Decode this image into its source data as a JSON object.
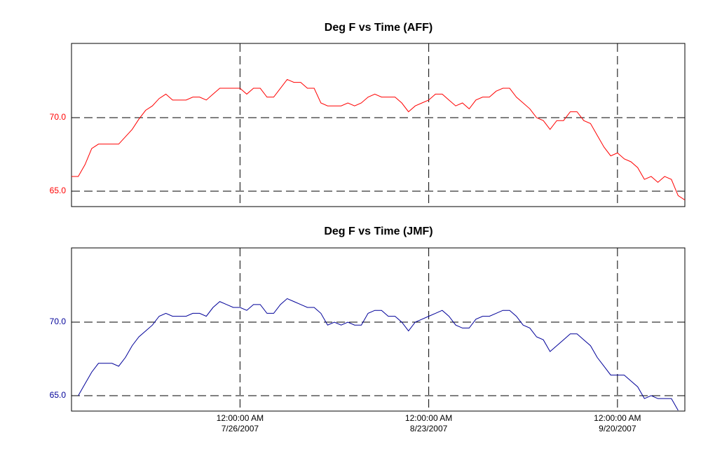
{
  "chart_data": [
    {
      "type": "line",
      "title": "Deg F vs Time (AFF)",
      "x": [
        "7/1/2007",
        "7/2/2007",
        "7/3/2007",
        "7/4/2007",
        "7/5/2007",
        "7/6/2007",
        "7/7/2007",
        "7/8/2007",
        "7/9/2007",
        "7/10/2007",
        "7/11/2007",
        "7/12/2007",
        "7/13/2007",
        "7/14/2007",
        "7/15/2007",
        "7/16/2007",
        "7/17/2007",
        "7/18/2007",
        "7/19/2007",
        "7/20/2007",
        "7/21/2007",
        "7/22/2007",
        "7/23/2007",
        "7/24/2007",
        "7/25/2007",
        "7/26/2007",
        "7/27/2007",
        "7/28/2007",
        "7/29/2007",
        "7/30/2007",
        "7/31/2007",
        "8/1/2007",
        "8/2/2007",
        "8/3/2007",
        "8/4/2007",
        "8/5/2007",
        "8/6/2007",
        "8/7/2007",
        "8/8/2007",
        "8/9/2007",
        "8/10/2007",
        "8/11/2007",
        "8/12/2007",
        "8/13/2007",
        "8/14/2007",
        "8/15/2007",
        "8/16/2007",
        "8/17/2007",
        "8/18/2007",
        "8/19/2007",
        "8/20/2007",
        "8/21/2007",
        "8/22/2007",
        "8/23/2007",
        "8/24/2007",
        "8/25/2007",
        "8/26/2007",
        "8/27/2007",
        "8/28/2007",
        "8/29/2007",
        "8/30/2007",
        "8/31/2007",
        "9/1/2007",
        "9/2/2007",
        "9/3/2007",
        "9/4/2007",
        "9/5/2007",
        "9/6/2007",
        "9/7/2007",
        "9/8/2007",
        "9/9/2007",
        "9/10/2007",
        "9/11/2007",
        "9/12/2007",
        "9/13/2007",
        "9/14/2007",
        "9/15/2007",
        "9/16/2007",
        "9/17/2007",
        "9/18/2007",
        "9/19/2007",
        "9/20/2007",
        "9/21/2007",
        "9/22/2007",
        "9/23/2007",
        "9/24/2007",
        "9/25/2007",
        "9/26/2007",
        "9/27/2007",
        "9/28/2007",
        "9/29/2007",
        "9/30/2007"
      ],
      "series": [
        {
          "color": "#ff0000",
          "values": [
            66.0,
            66.0,
            66.8,
            67.9,
            68.2,
            68.2,
            68.2,
            68.2,
            68.7,
            69.2,
            69.9,
            70.5,
            70.8,
            71.3,
            71.6,
            71.2,
            71.2,
            71.2,
            71.4,
            71.4,
            71.2,
            71.6,
            72.0,
            72.0,
            72.0,
            72.0,
            71.6,
            72.0,
            72.0,
            71.4,
            71.4,
            72.0,
            72.6,
            72.4,
            72.4,
            72.0,
            72.0,
            71.0,
            70.8,
            70.8,
            70.8,
            71.0,
            70.8,
            71.0,
            71.4,
            71.6,
            71.4,
            71.4,
            71.4,
            71.0,
            70.4,
            70.8,
            71.0,
            71.2,
            71.6,
            71.6,
            71.2,
            70.8,
            71.0,
            70.6,
            71.2,
            71.4,
            71.4,
            71.8,
            72.0,
            72.0,
            71.4,
            71.0,
            70.6,
            70.0,
            69.8,
            69.2,
            69.8,
            69.8,
            70.4,
            70.4,
            69.8,
            69.6,
            68.8,
            68.0,
            67.4,
            67.6,
            67.2,
            67.0,
            66.6,
            65.8,
            66.0,
            65.6,
            66.0,
            65.8,
            64.7,
            64.4
          ]
        }
      ],
      "xlim": [
        "7/1/2007",
        "9/30/2007"
      ],
      "xticks": [
        "7/26/2007",
        "8/23/2007",
        "9/20/2007"
      ],
      "ylim": [
        63.95,
        75.05
      ],
      "yticks": [
        {
          "value": 65,
          "label": "65.0"
        },
        {
          "value": 70,
          "label": "70.0"
        }
      ],
      "tick_color": "#ff0000",
      "grid": true
    },
    {
      "type": "line",
      "title": "Deg F vs Time (JMF)",
      "x": [
        "7/1/2007",
        "7/2/2007",
        "7/3/2007",
        "7/4/2007",
        "7/5/2007",
        "7/6/2007",
        "7/7/2007",
        "7/8/2007",
        "7/9/2007",
        "7/10/2007",
        "7/11/2007",
        "7/12/2007",
        "7/13/2007",
        "7/14/2007",
        "7/15/2007",
        "7/16/2007",
        "7/17/2007",
        "7/18/2007",
        "7/19/2007",
        "7/20/2007",
        "7/21/2007",
        "7/22/2007",
        "7/23/2007",
        "7/24/2007",
        "7/25/2007",
        "7/26/2007",
        "7/27/2007",
        "7/28/2007",
        "7/29/2007",
        "7/30/2007",
        "7/31/2007",
        "8/1/2007",
        "8/2/2007",
        "8/3/2007",
        "8/4/2007",
        "8/5/2007",
        "8/6/2007",
        "8/7/2007",
        "8/8/2007",
        "8/9/2007",
        "8/10/2007",
        "8/11/2007",
        "8/12/2007",
        "8/13/2007",
        "8/14/2007",
        "8/15/2007",
        "8/16/2007",
        "8/17/2007",
        "8/18/2007",
        "8/19/2007",
        "8/20/2007",
        "8/21/2007",
        "8/22/2007",
        "8/23/2007",
        "8/24/2007",
        "8/25/2007",
        "8/26/2007",
        "8/27/2007",
        "8/28/2007",
        "8/29/2007",
        "8/30/2007",
        "8/31/2007",
        "9/1/2007",
        "9/2/2007",
        "9/3/2007",
        "9/4/2007",
        "9/5/2007",
        "9/6/2007",
        "9/7/2007",
        "9/8/2007",
        "9/9/2007",
        "9/10/2007",
        "9/11/2007",
        "9/12/2007",
        "9/13/2007",
        "9/14/2007",
        "9/15/2007",
        "9/16/2007",
        "9/17/2007",
        "9/18/2007",
        "9/19/2007",
        "9/20/2007",
        "9/21/2007",
        "9/22/2007",
        "9/23/2007",
        "9/24/2007",
        "9/25/2007",
        "9/26/2007",
        "9/27/2007",
        "9/28/2007",
        "9/29/2007",
        "9/30/2007"
      ],
      "series": [
        {
          "color": "#000099",
          "values": [
            null,
            65.0,
            65.8,
            66.6,
            67.2,
            67.2,
            67.2,
            67.0,
            67.6,
            68.4,
            69.0,
            69.4,
            69.8,
            70.4,
            70.6,
            70.4,
            70.4,
            70.4,
            70.6,
            70.6,
            70.4,
            71.0,
            71.4,
            71.2,
            71.0,
            71.0,
            70.8,
            71.2,
            71.2,
            70.6,
            70.6,
            71.2,
            71.6,
            71.4,
            71.2,
            71.0,
            71.0,
            70.6,
            69.8,
            70.0,
            69.8,
            70.0,
            69.8,
            69.8,
            70.6,
            70.8,
            70.8,
            70.4,
            70.4,
            70.0,
            69.4,
            70.0,
            70.2,
            70.4,
            70.6,
            70.8,
            70.4,
            69.8,
            69.6,
            69.6,
            70.2,
            70.4,
            70.4,
            70.6,
            70.8,
            70.8,
            70.4,
            69.8,
            69.6,
            69.0,
            68.8,
            68.0,
            68.4,
            68.8,
            69.2,
            69.2,
            68.8,
            68.4,
            67.6,
            67.0,
            66.4,
            66.4,
            66.4,
            66.0,
            65.6,
            64.8,
            65.0,
            64.8,
            64.8,
            64.8,
            64.0,
            null
          ]
        }
      ],
      "xlim": [
        "7/1/2007",
        "9/30/2007"
      ],
      "xticks": [
        {
          "value": "7/26/2007",
          "label": [
            "12:00:00 AM",
            "7/26/2007"
          ]
        },
        {
          "value": "8/23/2007",
          "label": [
            "12:00:00 AM",
            "8/23/2007"
          ]
        },
        {
          "value": "9/20/2007",
          "label": [
            "12:00:00 AM",
            "9/20/2007"
          ]
        }
      ],
      "ylim": [
        63.95,
        75.05
      ],
      "yticks": [
        {
          "value": 65,
          "label": "65.0"
        },
        {
          "value": 70,
          "label": "70.0"
        }
      ],
      "tick_color": "#000099",
      "grid": true
    }
  ]
}
